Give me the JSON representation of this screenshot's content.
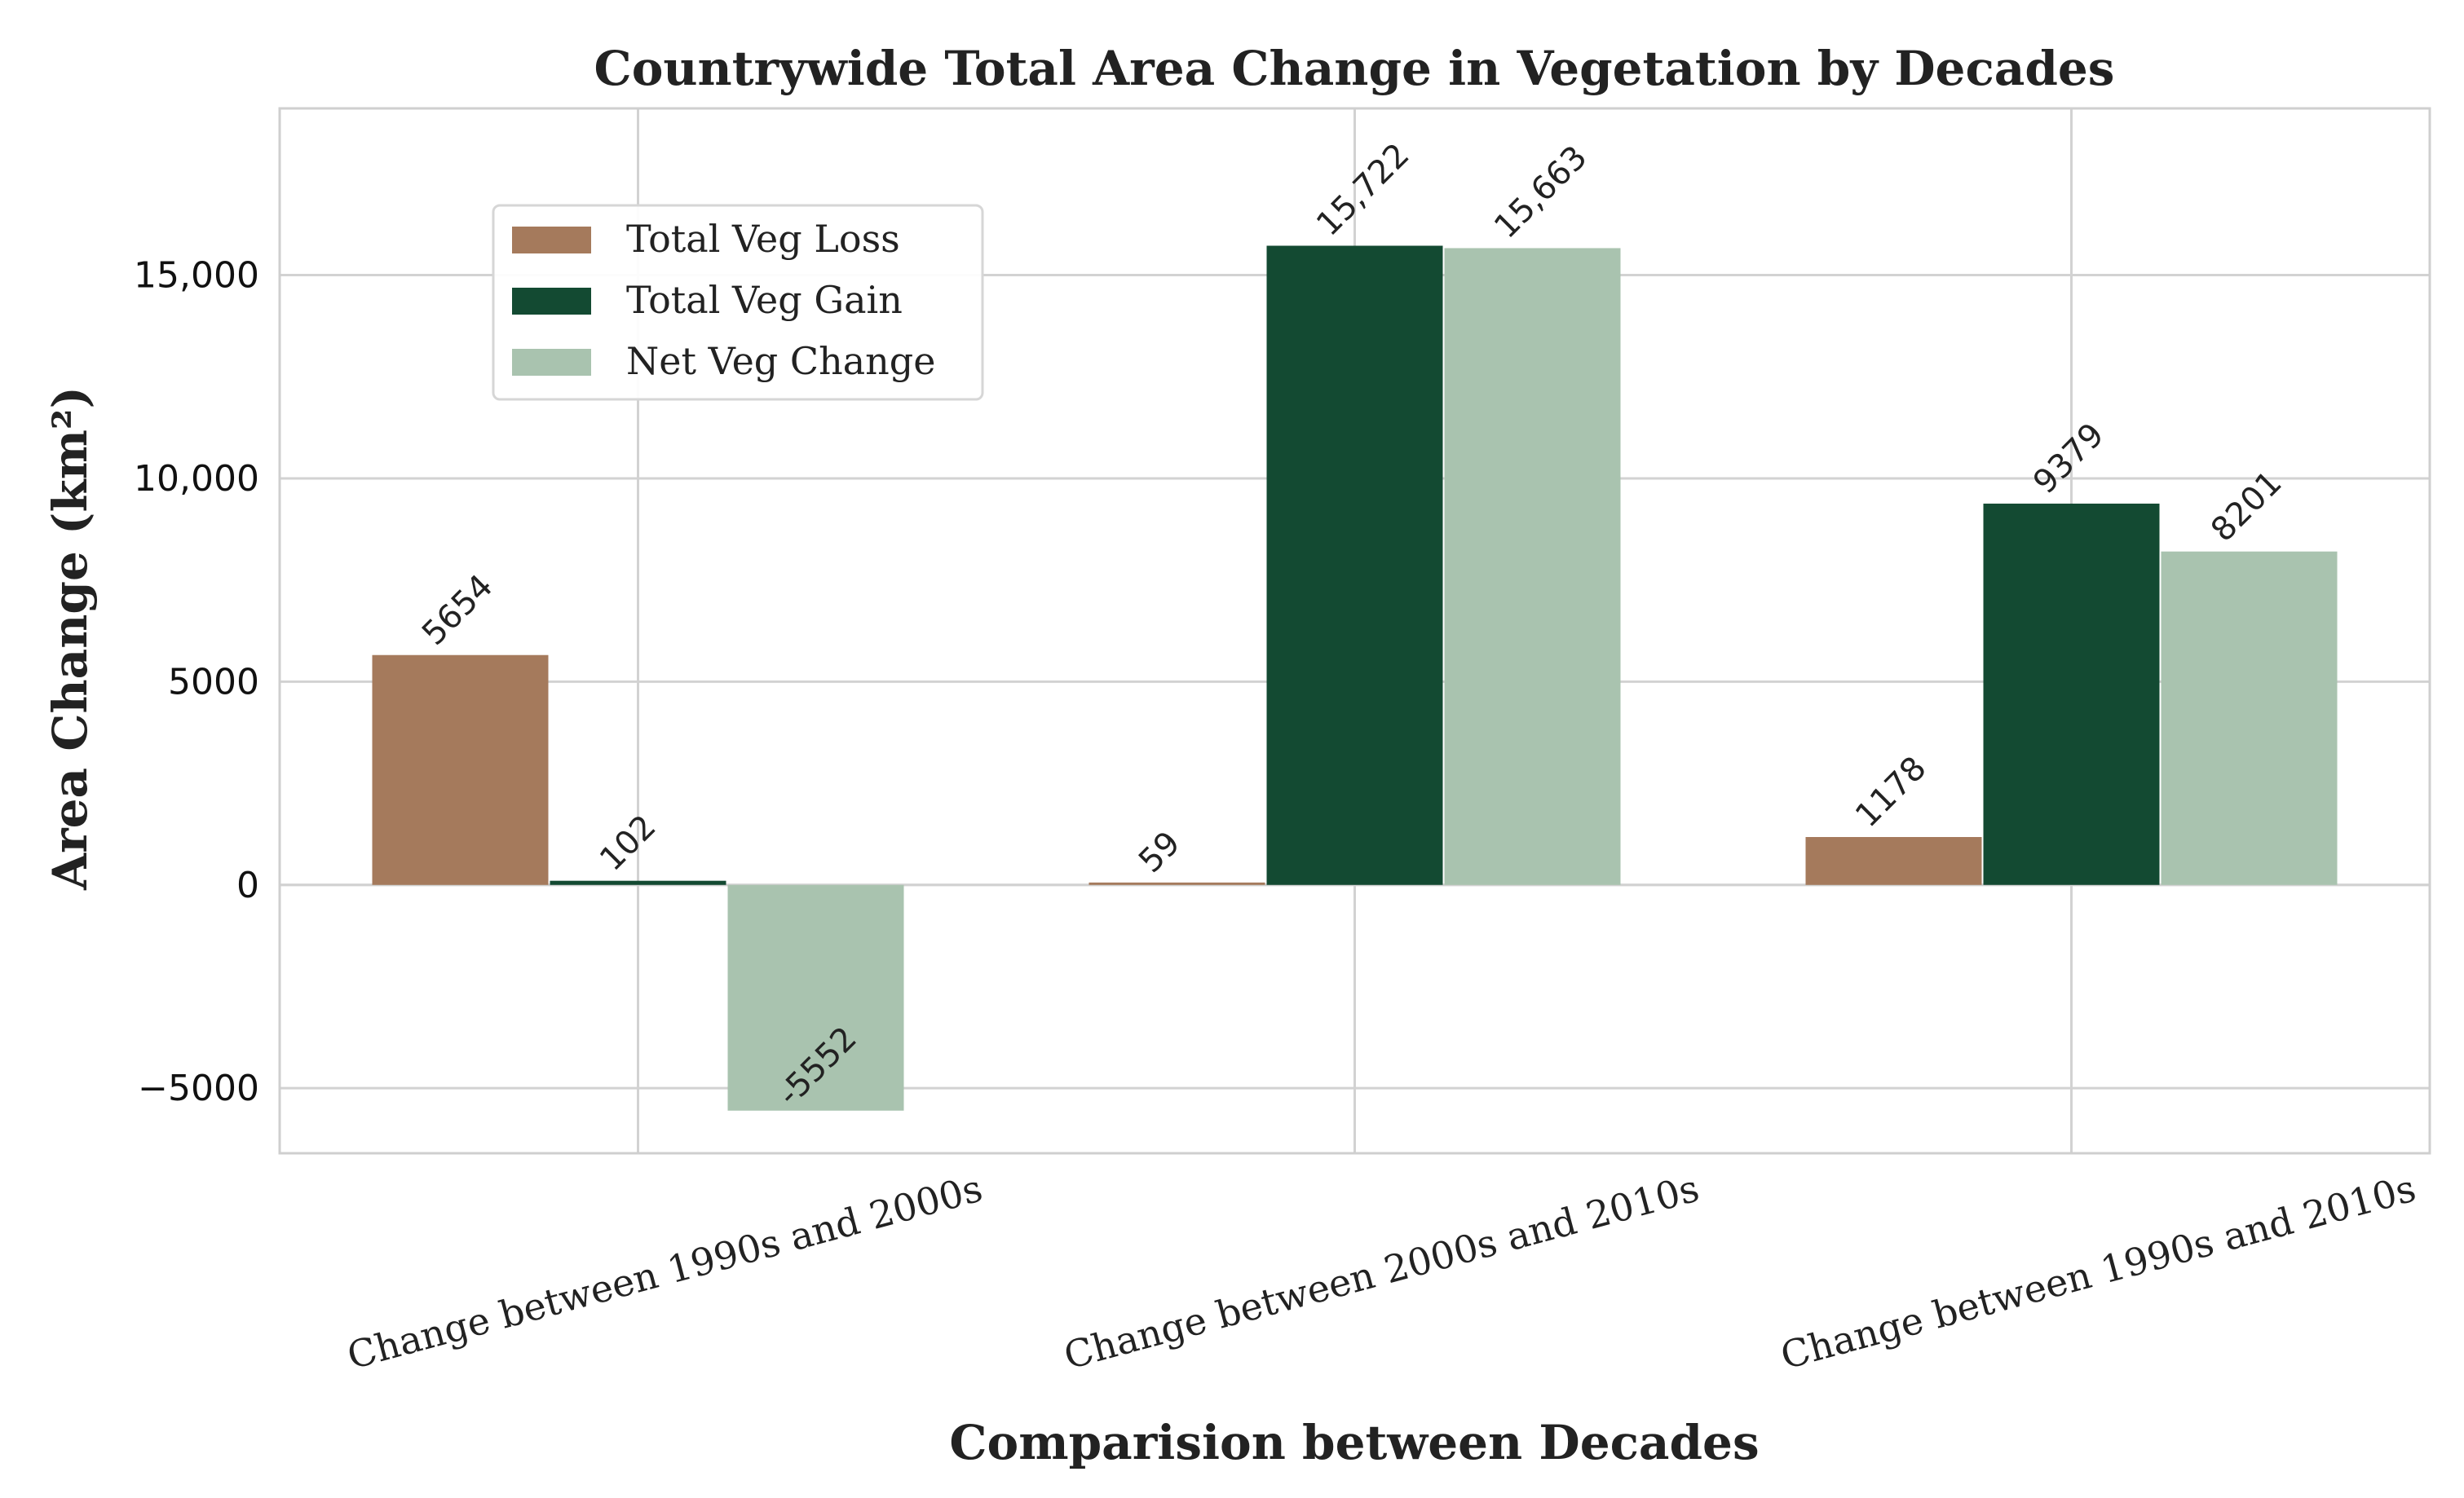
{
  "chart_data": {
    "type": "bar",
    "title": "Countrywide Total Area Change in Vegetation by Decades",
    "xlabel": "Comparision between Decades",
    "ylabel": "Area Change (km²)",
    "categories": [
      "Change between 1990s and 2000s",
      "Change between 2000s and 2010s",
      "Change between 1990s and 2010s"
    ],
    "series": [
      {
        "name": "Total Veg Loss",
        "color": "#a57a5c",
        "values": [
          5654,
          59,
          1178
        ],
        "labels": [
          "5654",
          "59",
          "1178"
        ]
      },
      {
        "name": "Total Veg Gain",
        "color": "#134a32",
        "values": [
          102,
          15722,
          9379
        ],
        "labels": [
          "102",
          "15,722",
          "9379"
        ]
      },
      {
        "name": "Net Veg Change",
        "color": "#a9c3af",
        "values": [
          -5552,
          15663,
          8201
        ],
        "labels": [
          "-5552",
          "15,663",
          "8201"
        ]
      }
    ],
    "ylim": [
      -6600,
      19100
    ],
    "yticks": [
      {
        "value": -5000,
        "label": "−5000"
      },
      {
        "value": 0,
        "label": "0"
      },
      {
        "value": 5000,
        "label": "5000"
      },
      {
        "value": 10000,
        "label": "10,000"
      },
      {
        "value": 15000,
        "label": "15,000"
      }
    ],
    "grid": true,
    "legend_position": "upper-left"
  }
}
